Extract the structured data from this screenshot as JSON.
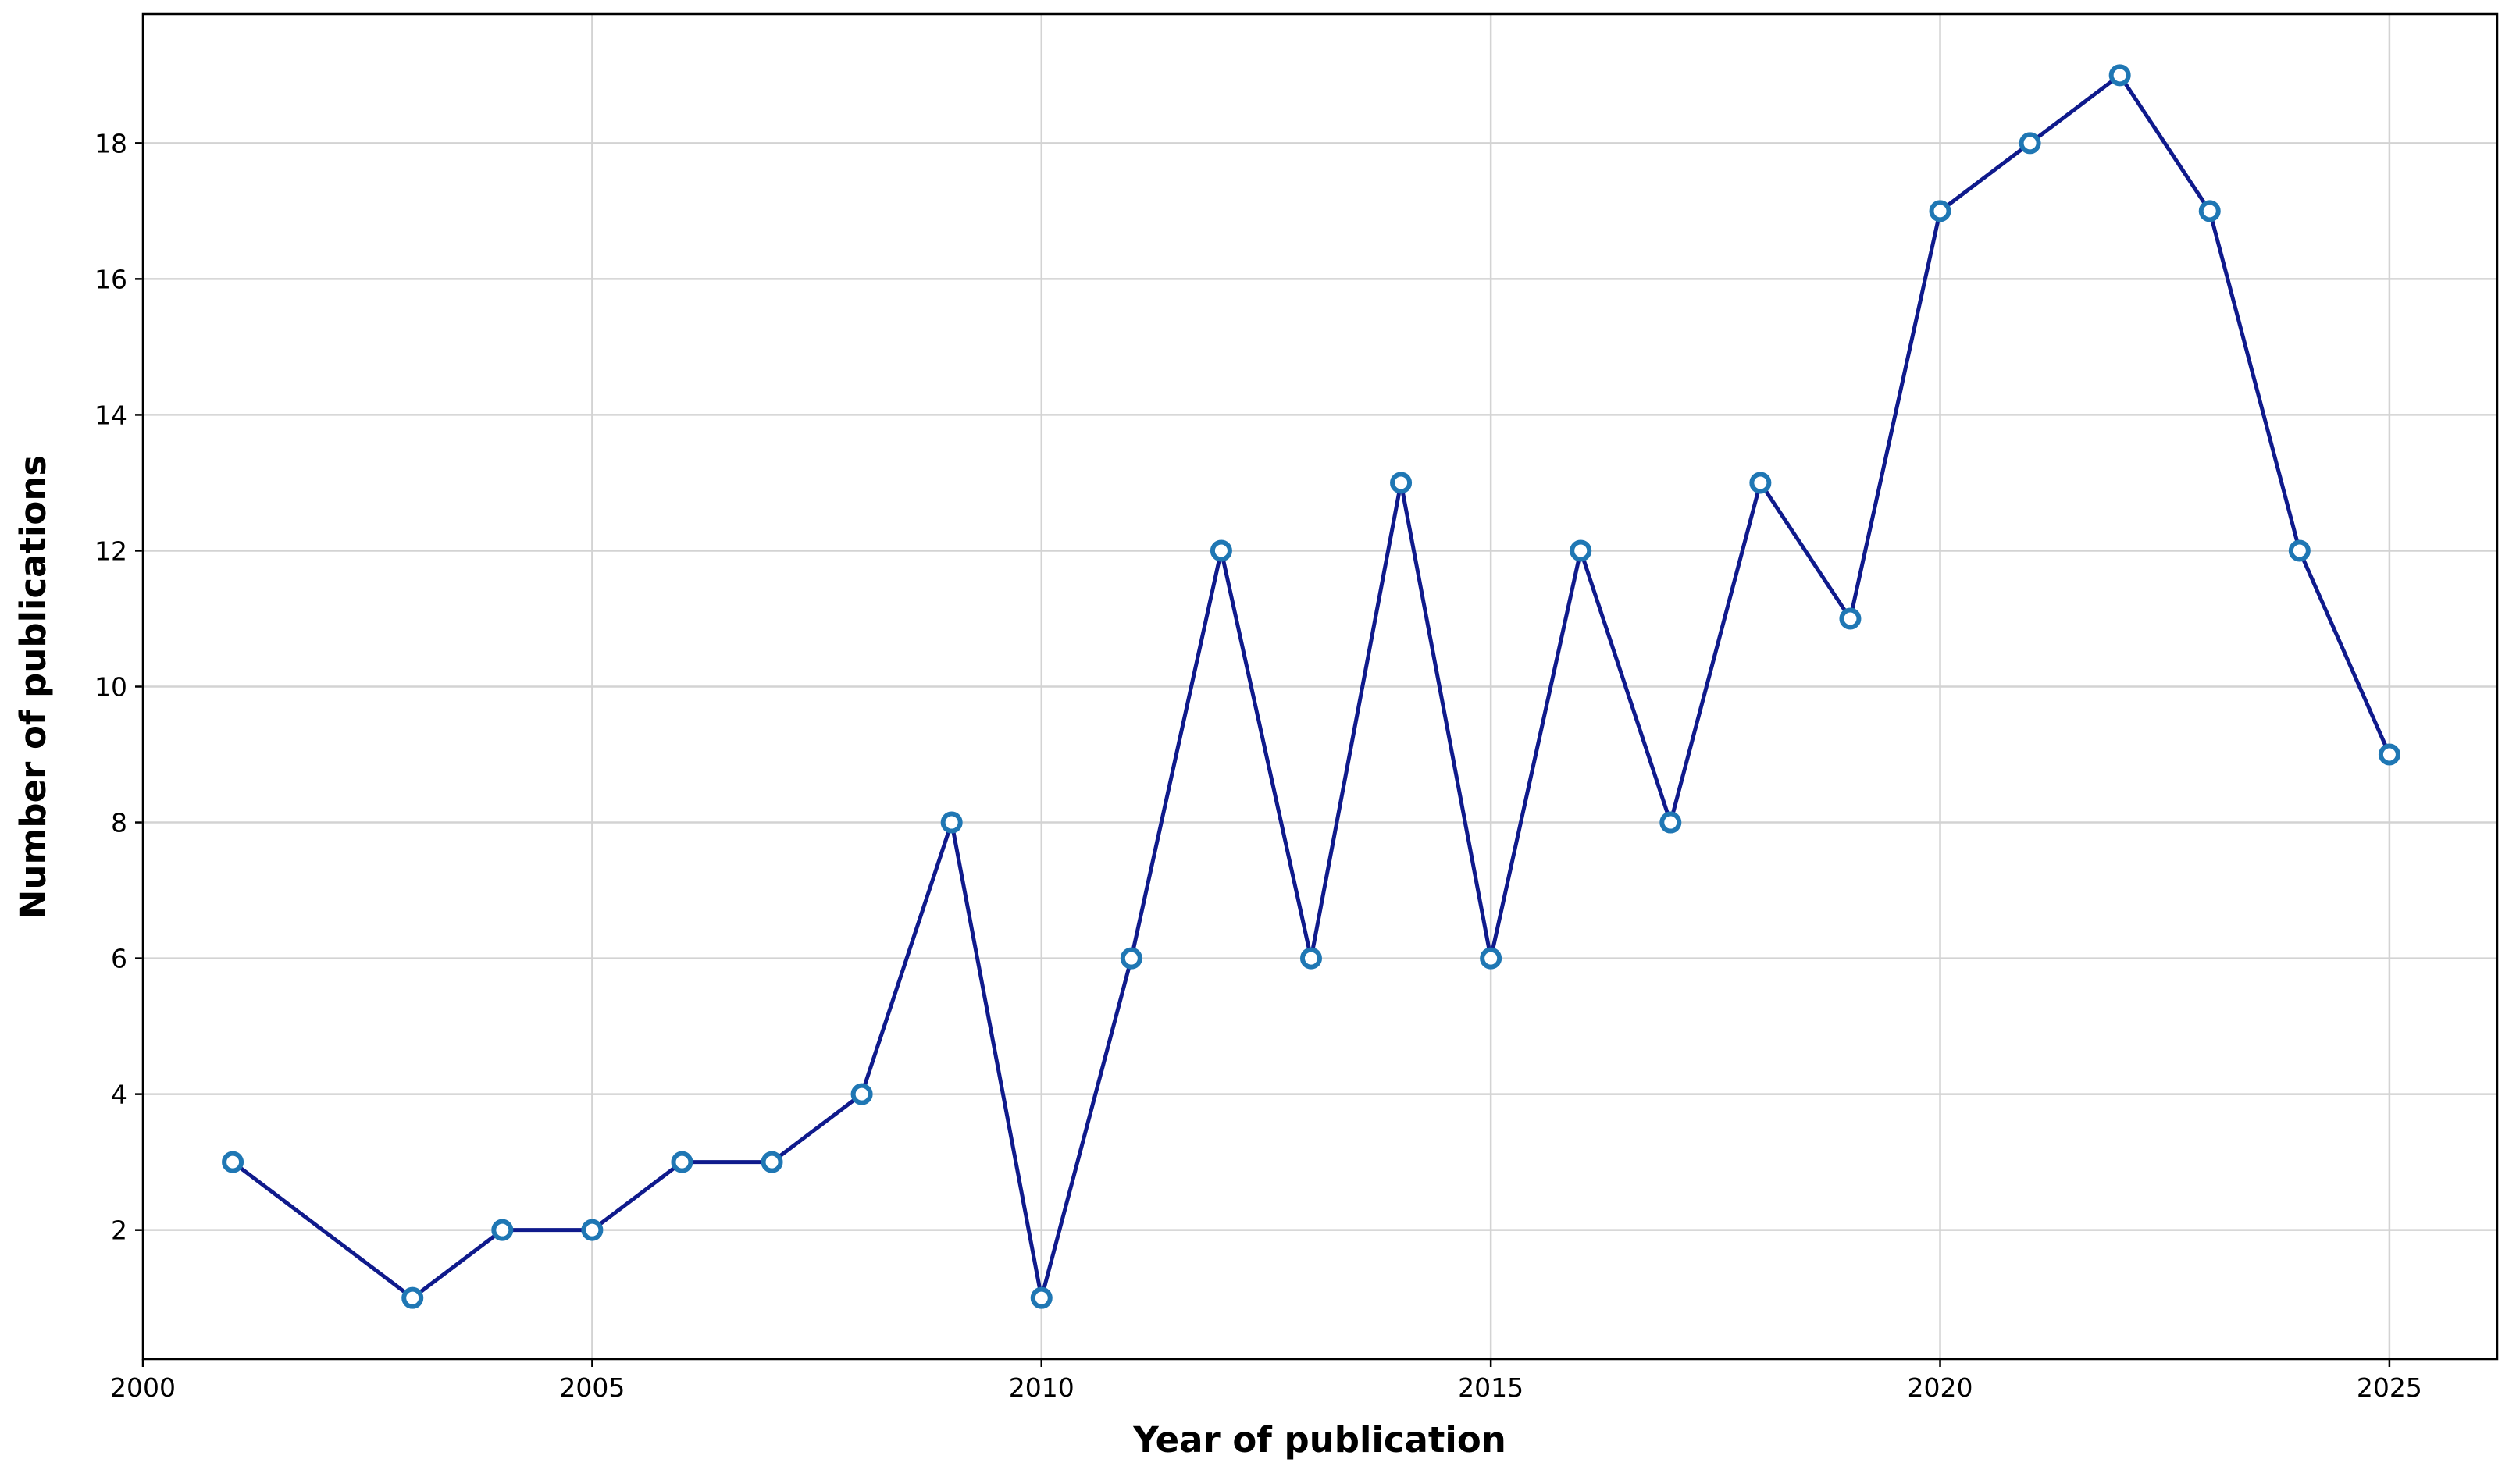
{
  "chart_data": {
    "type": "line",
    "x_label": "Year of publication",
    "y_label": "Number of publications",
    "x": [
      2001,
      2003,
      2004,
      2005,
      2006,
      2007,
      2008,
      2009,
      2010,
      2011,
      2012,
      2013,
      2014,
      2015,
      2016,
      2017,
      2018,
      2019,
      2020,
      2021,
      2022,
      2023,
      2024,
      2025
    ],
    "series": [
      {
        "color": "#0f1a8c",
        "marker_edge": "#1f77b4",
        "values": [
          3,
          1,
          2,
          2,
          3,
          3,
          4,
          8,
          1,
          6,
          12,
          6,
          13,
          6,
          12,
          8,
          13,
          11,
          17,
          18,
          19,
          17,
          12,
          9
        ]
      }
    ],
    "xlim": [
      2000,
      2026.2
    ],
    "xticks": [
      2000,
      2005,
      2010,
      2015,
      2020,
      2025
    ],
    "ylim": [
      0.1,
      19.9
    ],
    "yticks": [
      2,
      4,
      6,
      8,
      10,
      12,
      14,
      16,
      18
    ],
    "grid": true
  }
}
